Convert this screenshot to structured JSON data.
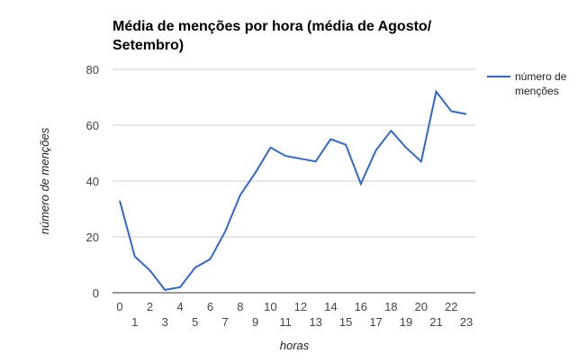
{
  "chart_data": {
    "type": "line",
    "title": "Média de menções por hora (média de Agosto/ Setembro)",
    "xlabel": "horas",
    "ylabel": "número de menções",
    "x": [
      0,
      1,
      2,
      3,
      4,
      5,
      6,
      7,
      8,
      9,
      10,
      11,
      12,
      13,
      14,
      15,
      16,
      17,
      18,
      19,
      20,
      21,
      22,
      23
    ],
    "series": [
      {
        "name": "número de menções",
        "color": "#3366cc",
        "values": [
          33,
          13,
          8,
          1,
          2,
          9,
          12,
          22,
          35,
          43,
          52,
          49,
          48,
          47,
          55,
          53,
          39,
          51,
          58,
          52,
          47,
          72,
          65,
          64
        ]
      }
    ],
    "ylim": [
      0,
      80
    ],
    "yticks": [
      0,
      20,
      40,
      60,
      80
    ],
    "grid": true,
    "legend": "right",
    "legend_lines": [
      "número de",
      "menções"
    ]
  }
}
